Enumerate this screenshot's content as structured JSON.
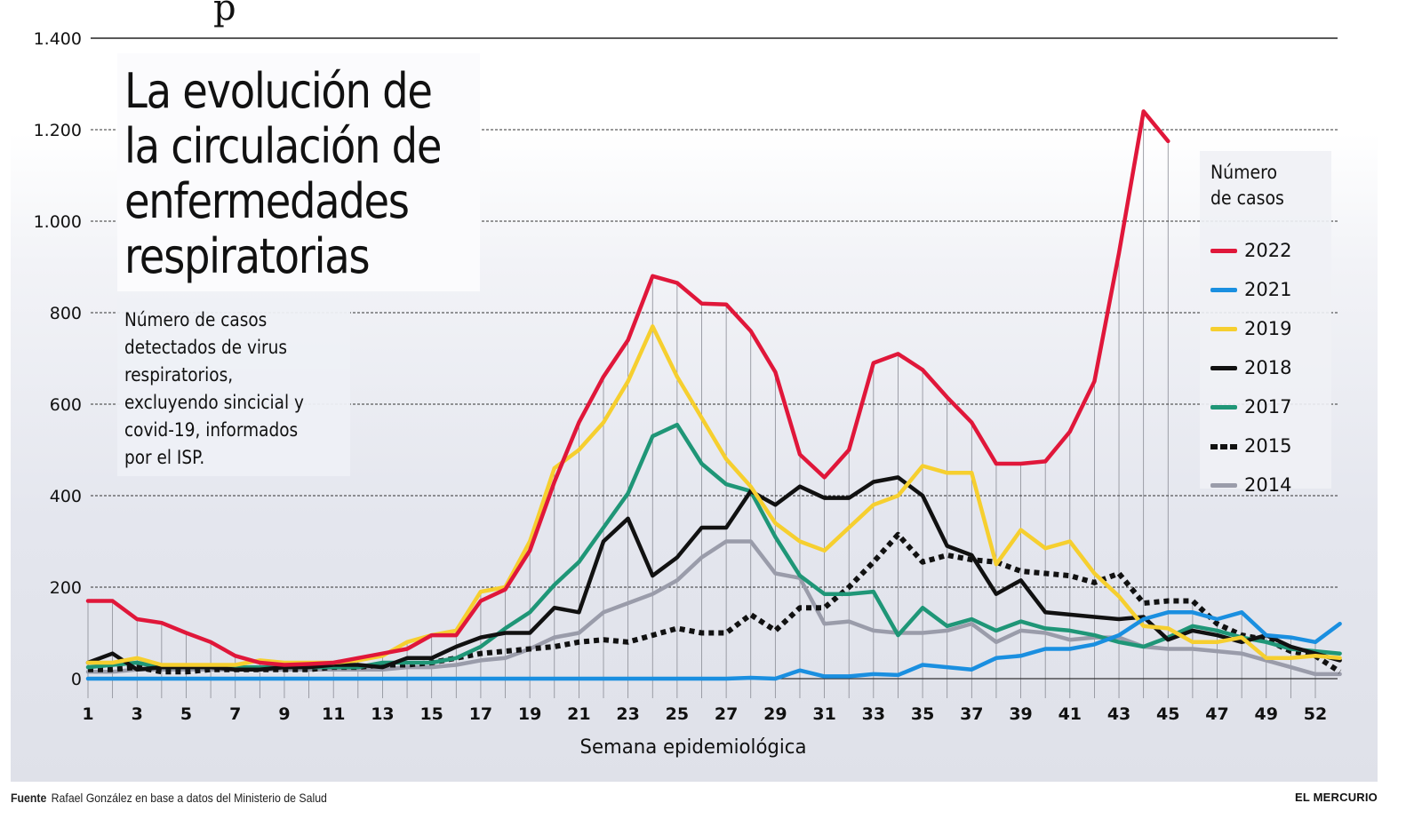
{
  "page": {
    "cropped_top_glyph": "p",
    "footer": {
      "source_label": "Fuente",
      "source_text": "Rafael González en base a datos del Ministerio de Salud",
      "brand": "EL MERCURIO"
    }
  },
  "chart_data": {
    "type": "line",
    "title_lines": [
      "La evolución de",
      "la circulación de",
      "enfermedades",
      "respiratorias"
    ],
    "subtitle_lines": [
      "Número de casos",
      "detectados de virus",
      "respiratorios,",
      "excluyendo sincicial y",
      "covid-19, informados",
      "por el ISP."
    ],
    "xlabel": "Semana epidemiológica",
    "ylabel": "",
    "ylim": [
      0,
      1400
    ],
    "xlim": [
      1,
      52
    ],
    "yticks": [
      0,
      200,
      400,
      600,
      800,
      1000,
      1200,
      1400
    ],
    "ytick_labels": [
      "0",
      "200",
      "400",
      "600",
      "800",
      "1.000",
      "1.200",
      "1.400"
    ],
    "xticks": [
      1,
      3,
      5,
      7,
      9,
      11,
      13,
      15,
      17,
      19,
      21,
      23,
      25,
      27,
      29,
      31,
      33,
      35,
      37,
      39,
      41,
      43,
      45,
      47,
      49,
      51
    ],
    "xtick_labels": [
      "1",
      "3",
      "5",
      "7",
      "9",
      "11",
      "13",
      "15",
      "17",
      "19",
      "21",
      "23",
      "25",
      "27",
      "29",
      "31",
      "33",
      "35",
      "37",
      "39",
      "41",
      "43",
      "45",
      "47",
      "49",
      "52"
    ],
    "grid": "horizontal dashed + vertical per week",
    "legend": {
      "title_lines": [
        "Número",
        "de casos"
      ],
      "position": "right"
    },
    "x": [
      1,
      2,
      3,
      4,
      5,
      6,
      7,
      8,
      9,
      10,
      11,
      12,
      13,
      14,
      15,
      16,
      17,
      18,
      19,
      20,
      21,
      22,
      23,
      24,
      25,
      26,
      27,
      28,
      29,
      30,
      31,
      32,
      33,
      34,
      35,
      36,
      37,
      38,
      39,
      40,
      41,
      42,
      43,
      44,
      45,
      46,
      47,
      48,
      49,
      50,
      51,
      52
    ],
    "series": [
      {
        "name": "2022",
        "color": "#e0173a",
        "style": "solid",
        "values": [
          170,
          170,
          130,
          122,
          100,
          80,
          50,
          35,
          30,
          32,
          35,
          45,
          55,
          65,
          95,
          95,
          170,
          195,
          280,
          430,
          560,
          660,
          740,
          880,
          865,
          820,
          818,
          760,
          670,
          490,
          440,
          500,
          690,
          710,
          675,
          615,
          560,
          470,
          470,
          475,
          540,
          650,
          930,
          1240,
          1175
        ]
      },
      {
        "name": "2021",
        "color": "#1a8fe0",
        "style": "solid",
        "values": [
          0,
          0,
          0,
          0,
          0,
          0,
          0,
          0,
          0,
          0,
          0,
          0,
          0,
          0,
          0,
          0,
          0,
          0,
          0,
          0,
          0,
          0,
          0,
          0,
          -3,
          0,
          -3,
          2,
          0,
          18,
          5,
          5,
          10,
          8,
          30,
          25,
          20,
          45,
          50,
          65,
          65,
          75,
          95,
          130,
          145,
          145,
          130,
          145,
          95,
          90,
          80,
          120
        ]
      },
      {
        "name": "2019",
        "color": "#f6cf2f",
        "style": "solid",
        "values": [
          35,
          35,
          45,
          30,
          30,
          30,
          30,
          40,
          35,
          35,
          35,
          40,
          50,
          80,
          95,
          105,
          190,
          200,
          300,
          460,
          500,
          560,
          650,
          770,
          660,
          570,
          480,
          420,
          340,
          300,
          280,
          330,
          380,
          400,
          465,
          450,
          450,
          250,
          325,
          285,
          300,
          230,
          180,
          115,
          110,
          80,
          80,
          90,
          45,
          45,
          50,
          45
        ]
      },
      {
        "name": "2018",
        "color": "#111111",
        "style": "solid",
        "values": [
          35,
          55,
          20,
          25,
          25,
          25,
          20,
          20,
          25,
          25,
          30,
          30,
          25,
          45,
          45,
          70,
          90,
          100,
          100,
          155,
          145,
          300,
          350,
          225,
          265,
          330,
          330,
          410,
          380,
          420,
          395,
          395,
          430,
          440,
          400,
          290,
          270,
          185,
          215,
          145,
          140,
          135,
          130,
          135,
          85,
          105,
          95,
          80,
          95,
          70,
          55,
          40
        ]
      },
      {
        "name": "2017",
        "color": "#1f9677",
        "style": "solid",
        "values": [
          25,
          30,
          35,
          25,
          25,
          25,
          25,
          25,
          25,
          25,
          25,
          25,
          35,
          35,
          35,
          45,
          70,
          110,
          145,
          205,
          255,
          330,
          405,
          530,
          555,
          470,
          425,
          410,
          310,
          225,
          185,
          185,
          190,
          95,
          155,
          115,
          130,
          105,
          125,
          110,
          105,
          95,
          80,
          70,
          90,
          115,
          105,
          90,
          80,
          65,
          60,
          55
        ]
      },
      {
        "name": "2015",
        "color": "#111111",
        "style": "dotted",
        "values": [
          20,
          20,
          25,
          15,
          15,
          20,
          20,
          20,
          20,
          20,
          25,
          25,
          30,
          30,
          35,
          45,
          55,
          60,
          65,
          70,
          80,
          85,
          80,
          95,
          110,
          100,
          100,
          140,
          105,
          155,
          155,
          200,
          255,
          315,
          255,
          270,
          260,
          255,
          235,
          230,
          225,
          210,
          230,
          165,
          170,
          170,
          120,
          95,
          85,
          60,
          50,
          15
        ]
      },
      {
        "name": "2014",
        "color": "#9a9caa",
        "style": "solid",
        "values": [
          15,
          15,
          20,
          20,
          20,
          20,
          20,
          20,
          20,
          20,
          20,
          20,
          20,
          25,
          25,
          30,
          40,
          45,
          65,
          90,
          100,
          145,
          165,
          185,
          215,
          265,
          300,
          300,
          230,
          220,
          120,
          125,
          105,
          100,
          100,
          105,
          120,
          80,
          105,
          100,
          85,
          90,
          90,
          70,
          65,
          65,
          60,
          55,
          40,
          25,
          10,
          10
        ]
      }
    ]
  }
}
